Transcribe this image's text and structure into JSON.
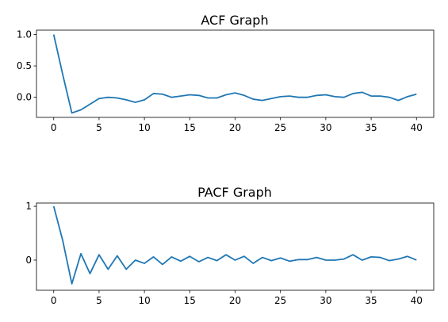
{
  "chart_data": [
    {
      "type": "line",
      "title": "ACF Graph",
      "xlabel": "",
      "ylabel": "",
      "xlim": [
        -1.9,
        41.9
      ],
      "ylim": [
        -0.32,
        1.07
      ],
      "xticks": [
        0,
        5,
        10,
        15,
        20,
        25,
        30,
        35,
        40
      ],
      "xtick_labels": [
        "0",
        "5",
        "10",
        "15",
        "20",
        "25",
        "30",
        "35",
        "40"
      ],
      "yticks": [
        1.0,
        0.5,
        0.0
      ],
      "ytick_labels": [
        "1.0",
        "0.5",
        "0.0"
      ],
      "grid": false,
      "series": [
        {
          "color": "#1f77b4",
          "x": [
            0,
            1,
            2,
            3,
            4,
            5,
            6,
            7,
            8,
            9,
            10,
            11,
            12,
            13,
            14,
            15,
            16,
            17,
            18,
            19,
            20,
            21,
            22,
            23,
            24,
            25,
            26,
            27,
            28,
            29,
            30,
            31,
            32,
            33,
            34,
            35,
            36,
            37,
            38,
            39,
            40
          ],
          "y": [
            1.0,
            0.36,
            -0.25,
            -0.2,
            -0.11,
            -0.02,
            0.0,
            -0.01,
            -0.04,
            -0.08,
            -0.04,
            0.06,
            0.05,
            0.0,
            0.02,
            0.04,
            0.03,
            -0.01,
            -0.01,
            0.04,
            0.07,
            0.03,
            -0.03,
            -0.05,
            -0.02,
            0.01,
            0.02,
            0.0,
            0.0,
            0.03,
            0.04,
            0.01,
            0.0,
            0.06,
            0.08,
            0.02,
            0.02,
            0.0,
            -0.05,
            0.01,
            0.05
          ]
        }
      ]
    },
    {
      "type": "line",
      "title": "PACF Graph",
      "xlabel": "",
      "ylabel": "",
      "xlim": [
        -1.9,
        41.9
      ],
      "ylim": [
        -0.56,
        1.06
      ],
      "xticks": [
        0,
        5,
        10,
        15,
        20,
        25,
        30,
        35,
        40
      ],
      "xtick_labels": [
        "0",
        "5",
        "10",
        "15",
        "20",
        "25",
        "30",
        "35",
        "40"
      ],
      "yticks": [
        1,
        0
      ],
      "ytick_labels": [
        "1",
        "0"
      ],
      "grid": false,
      "series": [
        {
          "color": "#1f77b4",
          "x": [
            0,
            1,
            2,
            3,
            4,
            5,
            6,
            7,
            8,
            9,
            10,
            11,
            12,
            13,
            14,
            15,
            16,
            17,
            18,
            19,
            20,
            21,
            22,
            23,
            24,
            25,
            26,
            27,
            28,
            29,
            30,
            31,
            32,
            33,
            34,
            35,
            36,
            37,
            38,
            39,
            40
          ],
          "y": [
            1.0,
            0.36,
            -0.44,
            0.12,
            -0.25,
            0.1,
            -0.17,
            0.08,
            -0.17,
            0.0,
            -0.06,
            0.06,
            -0.08,
            0.06,
            -0.02,
            0.07,
            -0.03,
            0.05,
            -0.01,
            0.1,
            0.0,
            0.07,
            -0.06,
            0.05,
            -0.01,
            0.04,
            -0.02,
            0.01,
            0.01,
            0.05,
            0.0,
            0.0,
            0.02,
            0.1,
            0.0,
            0.06,
            0.05,
            -0.01,
            0.02,
            0.07,
            0.0
          ]
        }
      ]
    }
  ]
}
